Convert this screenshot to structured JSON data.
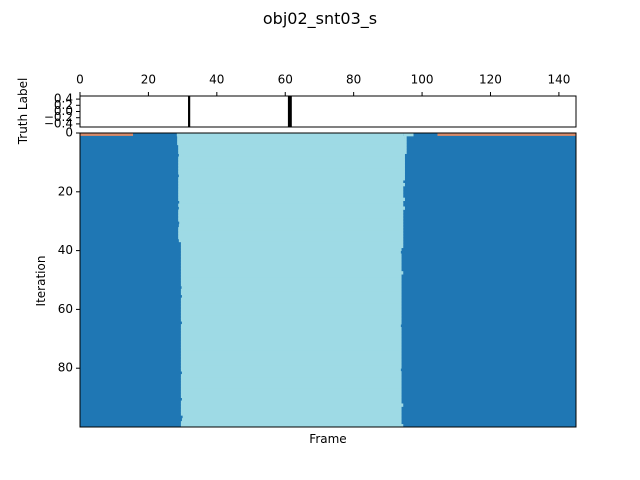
{
  "chart_data": [
    {
      "type": "line",
      "title": "obj02_snt03_s",
      "ylabel": "Truth Label",
      "xlim": [
        0,
        145
      ],
      "ylim": [
        -0.5,
        0.5
      ],
      "x_ticks": [
        0,
        20,
        40,
        60,
        80,
        100,
        120,
        140
      ],
      "y_ticks": [
        "−0.4",
        "−0.2",
        "0.0",
        "0.2",
        "0.4"
      ],
      "y_tick_values": [
        -0.4,
        -0.2,
        0.0,
        0.2,
        0.4
      ],
      "x_axis_position": "top",
      "grid": false,
      "legend": "none",
      "line_color": "#000000",
      "events": [
        {
          "frame": 31.9
        },
        {
          "frame": 61.1
        },
        {
          "frame": 61.6
        }
      ]
    },
    {
      "type": "heatmap",
      "xlabel": "Frame",
      "ylabel": "Iteration",
      "xlim": [
        0,
        145
      ],
      "ylim": [
        100,
        0
      ],
      "y_ticks": [
        0,
        20,
        40,
        60,
        80
      ],
      "x_ticks": [],
      "grid": false,
      "legend": "none",
      "colors": {
        "outer": "#1f77b4",
        "inner": "#9edae5",
        "first_row_edge": "#d68a6a"
      },
      "row_zero": {
        "orange_until": 15.5,
        "orange_from": 104.5
      },
      "inner_start": [
        28.3,
        28.4,
        28.4,
        28.4,
        28.7,
        28.7,
        28.7,
        28.9,
        28.7,
        28.7,
        28.7,
        28.7,
        28.7,
        28.7,
        28.9,
        28.7,
        28.7,
        28.7,
        28.7,
        28.7,
        28.7,
        28.7,
        28.7,
        29.0,
        28.7,
        28.9,
        28.7,
        28.7,
        28.7,
        28.7,
        29.0,
        28.9,
        28.7,
        28.7,
        28.7,
        28.7,
        28.9,
        29.5,
        29.5,
        29.5,
        29.5,
        29.5,
        29.5,
        29.5,
        29.5,
        29.5,
        29.5,
        29.5,
        29.5,
        29.5,
        29.5,
        29.5,
        29.7,
        29.5,
        29.5,
        29.8,
        29.5,
        29.5,
        29.5,
        29.5,
        29.5,
        29.5,
        29.5,
        29.5,
        29.8,
        29.5,
        29.5,
        29.5,
        29.5,
        29.5,
        29.5,
        29.5,
        29.5,
        29.5,
        29.5,
        29.5,
        29.5,
        29.5,
        29.5,
        29.5,
        29.5,
        29.8,
        29.5,
        29.5,
        29.5,
        29.5,
        29.5,
        29.5,
        29.5,
        29.5,
        29.8,
        29.5,
        29.5,
        29.5,
        29.5,
        29.5,
        30.0,
        29.8,
        29.5,
        29.5
      ],
      "inner_end": [
        94.5,
        95.0,
        95.5,
        95.5,
        95.5,
        95.5,
        95.5,
        95.0,
        95.0,
        95.0,
        95.0,
        95.0,
        95.0,
        95.0,
        95.0,
        95.0,
        94.5,
        95.0,
        94.5,
        94.5,
        94.5,
        94.5,
        95.0,
        94.5,
        94.5,
        95.0,
        94.5,
        94.5,
        94.5,
        94.5,
        94.5,
        94.5,
        94.5,
        94.5,
        94.5,
        94.5,
        94.5,
        94.5,
        94.5,
        94.0,
        93.8,
        94.0,
        94.0,
        94.0,
        94.0,
        94.0,
        94.0,
        94.5,
        94.0,
        94.0,
        94.0,
        94.0,
        94.0,
        94.0,
        94.0,
        94.0,
        94.0,
        94.0,
        94.0,
        94.0,
        94.0,
        94.0,
        94.0,
        94.0,
        94.0,
        93.8,
        94.0,
        94.0,
        94.0,
        94.0,
        94.0,
        94.0,
        94.0,
        94.0,
        94.0,
        94.0,
        94.0,
        94.0,
        94.0,
        94.0,
        93.8,
        94.0,
        94.0,
        94.0,
        94.0,
        94.0,
        94.0,
        94.0,
        94.0,
        94.0,
        94.0,
        94.0,
        94.5,
        94.0,
        94.0,
        94.0,
        94.0,
        94.0,
        94.0,
        94.5
      ],
      "blue_from": [
        97.5,
        95.5,
        95.5,
        95.5,
        95.5,
        95.5,
        95.5,
        95.0,
        95.0,
        95.0,
        95.0,
        95.0,
        95.0,
        95.0,
        95.0,
        95.0,
        94.5,
        95.0,
        94.5,
        94.5,
        94.5,
        94.5,
        95.0,
        94.5,
        94.5,
        95.0,
        94.5,
        94.5,
        94.5,
        94.5,
        94.5,
        94.5,
        94.5,
        94.5,
        94.5,
        94.5,
        94.5,
        94.5,
        94.5,
        94.0,
        93.8,
        94.0,
        94.0,
        94.0,
        94.0,
        94.0,
        94.0,
        94.5,
        94.0,
        94.0,
        94.0,
        94.0,
        94.0,
        94.0,
        94.0,
        94.0,
        94.0,
        94.0,
        94.0,
        94.0,
        94.0,
        94.0,
        94.0,
        94.0,
        94.0,
        93.8,
        94.0,
        94.0,
        94.0,
        94.0,
        94.0,
        94.0,
        94.0,
        94.0,
        94.0,
        94.0,
        94.0,
        94.0,
        94.0,
        94.0,
        93.8,
        94.0,
        94.0,
        94.0,
        94.0,
        94.0,
        94.0,
        94.0,
        94.0,
        94.0,
        94.0,
        94.0,
        94.5,
        94.0,
        94.0,
        94.0,
        94.0,
        94.0,
        94.0,
        94.5
      ]
    }
  ]
}
